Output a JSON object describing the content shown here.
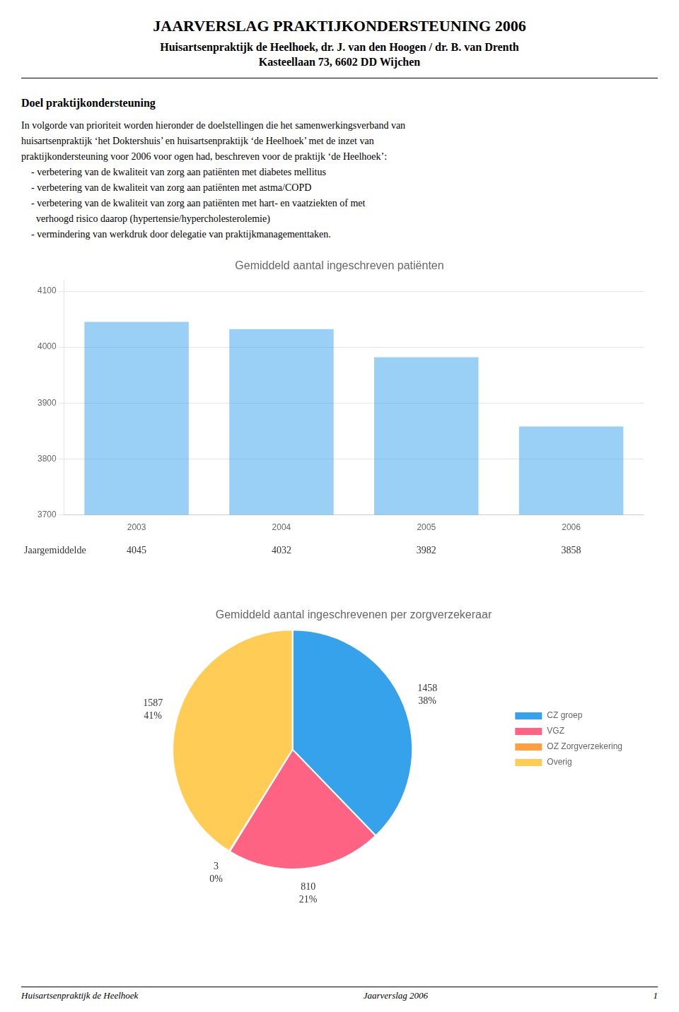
{
  "title": "JAARVERSLAG PRAKTIJKONDERSTEUNING 2006",
  "subtitle": [
    "Huisartsenpraktijk de Heelhoek, dr. J. van den Hoogen / dr. B. van Drenth",
    "Kasteellaan 73, 6602 DD Wijchen"
  ],
  "heading": "Doel praktijkondersteuning",
  "text": [
    "In volgorde van prioriteit worden hieronder de doelstellingen die het samenwerkingsverband van",
    "huisartsenpraktijk ‘het Doktershuis’ en huisartsenpraktijk ‘de Heelhoek’ met de inzet van",
    "praktijkondersteuning voor 2006 voor ogen had, beschreven voor de praktijk ‘de Heelhoek’:",
    "    - verbetering van de kwaliteit van zorg aan patiënten met diabetes mellitus",
    "    - verbetering van de kwaliteit van zorg aan patiënten met astma/COPD",
    "    - verbetering van de kwaliteit van zorg aan patiënten met hart- en vaatziekten of met",
    "      verhoogd risico daarop (hypertensie/hypercholesterolemie)",
    "    - vermindering van werkdruk door delegatie van praktijkmanagementtaken."
  ],
  "footer": [
    "Huisartsenpraktijk de Heelhoek",
    "Jaarverslag 2006",
    "1"
  ],
  "chart_data": [
    {
      "type": "bar",
      "title": "Gemiddeld aantal ingeschreven patiënten",
      "categories": [
        "2003",
        "2004",
        "2005",
        "2006"
      ],
      "values": [
        4045,
        4032,
        3982,
        3858
      ],
      "ylim": [
        3700,
        4120
      ],
      "yticks": [
        3700,
        3800,
        3900,
        4000,
        4100
      ],
      "grid": true,
      "data_labels": true,
      "annotation": "Jaargemiddelde"
    },
    {
      "type": "pie",
      "title": "Gemiddeld aantal ingeschrevenen per zorgverzekeraar",
      "categories": [
        "CZ groep",
        "VGZ",
        "OZ Zorgverzekering",
        "Overig"
      ],
      "values": [
        1458,
        810,
        3,
        1587
      ],
      "share_labels": [
        "38%",
        "21%",
        "0%",
        "41%"
      ],
      "data_labels": true,
      "legend": "right"
    }
  ]
}
